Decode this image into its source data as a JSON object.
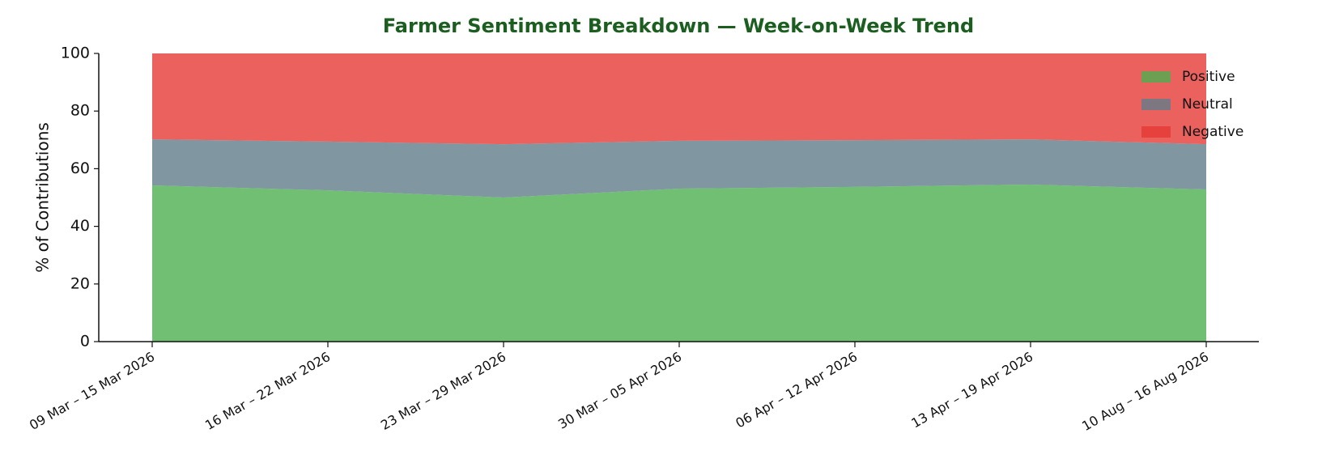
{
  "chart_data": {
    "type": "stacked_area",
    "title": "Farmer Sentiment Breakdown — Week-on-Week Trend",
    "y_label": "% of Contributions",
    "categories": [
      "09 Mar – 15 Mar 2026",
      "16 Mar – 22 Mar 2026",
      "23 Mar – 29 Mar 2026",
      "30 Mar – 05 Apr 2026",
      "06 Apr – 12 Apr 2026",
      "13 Apr – 19 Apr 2026",
      "10 Aug – 16 Aug 2026"
    ],
    "series": [
      {
        "name": "Positive",
        "color": "#4caf50",
        "values": [
          54.2,
          52.5,
          50.0,
          53.1,
          53.7,
          54.5,
          52.8
        ]
      },
      {
        "name": "Neutral",
        "color": "#607d8b",
        "values": [
          16.0,
          16.9,
          18.5,
          16.6,
          16.2,
          15.7,
          15.7
        ]
      },
      {
        "name": "Negative",
        "color": "#e53935",
        "values": [
          29.8,
          30.6,
          31.5,
          30.3,
          30.1,
          29.8,
          31.5
        ]
      }
    ],
    "ylim": [
      0,
      100
    ],
    "yticks": [
      0,
      20,
      40,
      60,
      80,
      100
    ],
    "legend": "upper right"
  }
}
